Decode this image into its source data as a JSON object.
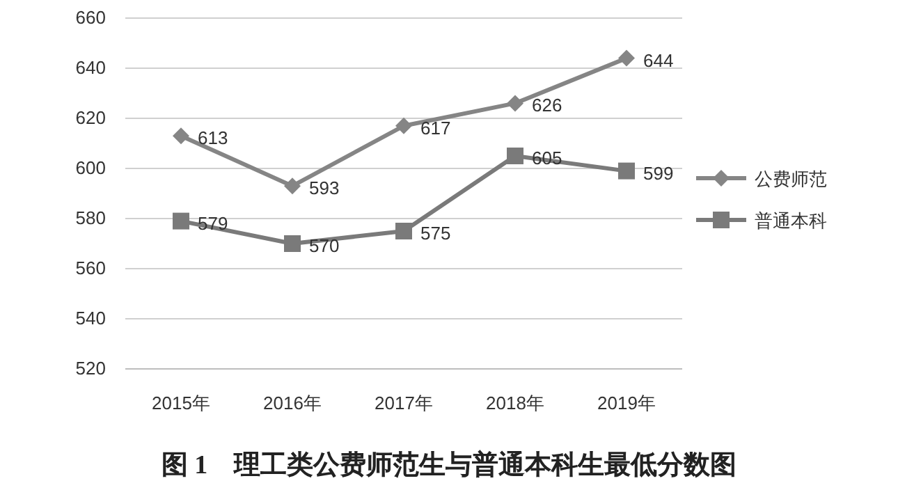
{
  "chart_data": {
    "type": "line",
    "title": "图 1　理工类公费师范生与普通本科生最低分数图",
    "categories": [
      "2015年",
      "2016年",
      "2017年",
      "2018年",
      "2019年"
    ],
    "series": [
      {
        "name": "公费师范",
        "color": "#858585",
        "values": [
          613,
          593,
          617,
          626,
          644
        ],
        "marker": "diamond"
      },
      {
        "name": "普通本科",
        "color": "#7a7a7a",
        "values": [
          579,
          570,
          575,
          605,
          599
        ],
        "marker": "square"
      }
    ],
    "ylim": [
      520,
      660
    ],
    "yticks": [
      520,
      540,
      560,
      580,
      600,
      620,
      640,
      660
    ],
    "grid": "y",
    "legend": "right",
    "data_labels": true,
    "line_style": "solid"
  }
}
